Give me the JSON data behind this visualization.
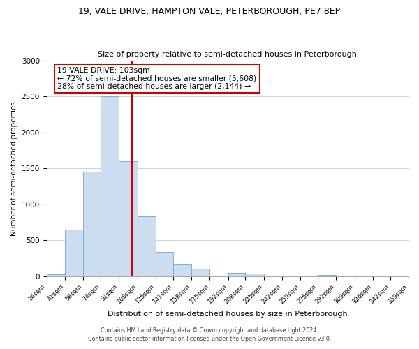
{
  "title": "19, VALE DRIVE, HAMPTON VALE, PETERBOROUGH, PE7 8EP",
  "subtitle": "Size of property relative to semi-detached houses in Peterborough",
  "xlabel": "Distribution of semi-detached houses by size in Peterborough",
  "ylabel": "Number of semi-detached properties",
  "bar_edges": [
    24,
    41,
    58,
    74,
    91,
    108,
    125,
    141,
    158,
    175,
    192,
    208,
    225,
    242,
    259,
    275,
    292,
    309,
    326,
    342,
    359
  ],
  "bar_heights": [
    30,
    650,
    1450,
    2500,
    1600,
    830,
    340,
    170,
    110,
    0,
    50,
    40,
    0,
    0,
    0,
    20,
    0,
    0,
    0,
    10
  ],
  "bar_facecolor": "#ccddf0",
  "bar_edgecolor": "#7ab0d4",
  "property_line_x": 103,
  "property_line_color": "#cc0000",
  "annotation_title": "19 VALE DRIVE: 103sqm",
  "annotation_line1": "← 72% of semi-detached houses are smaller (5,608)",
  "annotation_line2": "28% of semi-detached houses are larger (2,144) →",
  "annotation_box_edgecolor": "#cc0000",
  "ylim": [
    0,
    3000
  ],
  "yticks": [
    0,
    500,
    1000,
    1500,
    2000,
    2500,
    3000
  ],
  "tick_labels": [
    "24sqm",
    "41sqm",
    "58sqm",
    "74sqm",
    "91sqm",
    "108sqm",
    "125sqm",
    "141sqm",
    "158sqm",
    "175sqm",
    "192sqm",
    "208sqm",
    "225sqm",
    "242sqm",
    "259sqm",
    "275sqm",
    "292sqm",
    "309sqm",
    "326sqm",
    "342sqm",
    "359sqm"
  ],
  "footnote1": "Contains HM Land Registry data © Crown copyright and database right 2024.",
  "footnote2": "Contains public sector information licensed under the Open Government Licence v3.0.",
  "background_color": "#ffffff",
  "grid_color": "#d0d0d0"
}
